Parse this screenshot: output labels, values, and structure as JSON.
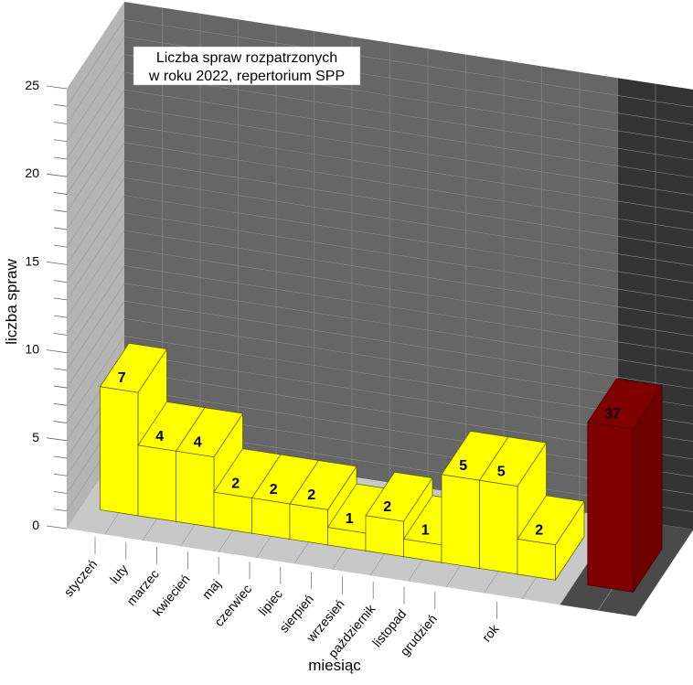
{
  "chart_data": {
    "type": "bar",
    "title_lines": [
      "Liczba spraw rozpatrzonych",
      "w roku 2022, repertorium SPP"
    ],
    "xlabel": "miesiąc",
    "ylabel": "liczba spraw",
    "ylim": [
      0,
      25
    ],
    "yticks": [
      "0",
      "5",
      "10",
      "15",
      "20",
      "25"
    ],
    "categories": [
      "styczeń",
      "luty",
      "marzec",
      "kwiecień",
      "maj",
      "czerwiec",
      "lipiec",
      "sierpień",
      "wrzesień",
      "październik",
      "listopad",
      "grudzień"
    ],
    "values": [
      7,
      4,
      4,
      2,
      2,
      2,
      1,
      2,
      1,
      5,
      5,
      2
    ],
    "value_labels": [
      "7",
      "4",
      "4",
      "2",
      "2",
      "2",
      "1",
      "2",
      "1",
      "5",
      "5",
      "2"
    ],
    "total": {
      "category": "rok",
      "value": 37,
      "label": "37"
    },
    "style": "3d",
    "grid": true,
    "colors": {
      "months": "#ffff00",
      "total": "#800000",
      "back_wall": "#666666",
      "side_wall": "#b4b4b4",
      "floor": "#c8c8c8",
      "total_wall": "#333333",
      "total_floor": "#4a4a4a"
    }
  }
}
